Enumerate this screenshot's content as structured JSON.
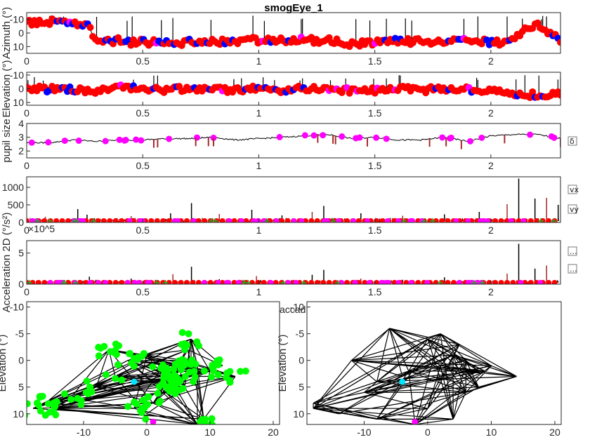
{
  "figure": {
    "title": "smogEye_1",
    "exponent_label": "×10^5",
    "saccade_label_fragment": "accad",
    "side_checkboxes": [
      {
        "name": "delta-checkbox",
        "label": "δ"
      },
      {
        "name": "vx-checkbox",
        "label": "vx"
      },
      {
        "name": "vy-checkbox",
        "label": "vy"
      },
      {
        "name": "option-checkbox-1",
        "label": "..."
      },
      {
        "name": "option-checkbox-2",
        "label": "..."
      }
    ]
  },
  "chart_data": [
    {
      "type": "line",
      "name": "azimuth",
      "ylabel": "Azimuth (°)",
      "xlim": [
        0,
        2.3
      ],
      "ylim": [
        -15,
        15
      ],
      "y_reversed": true,
      "xticks": [
        0,
        0.5,
        1,
        1.5,
        2
      ],
      "yticks": [
        -10,
        0,
        10
      ],
      "x": [
        0,
        0.1,
        0.2,
        0.26,
        0.3,
        0.4,
        0.5,
        0.6,
        0.7,
        0.8,
        0.9,
        1.0,
        1.1,
        1.2,
        1.3,
        1.4,
        1.5,
        1.6,
        1.7,
        1.8,
        1.9,
        2.0,
        2.06,
        2.1,
        2.15,
        2.2,
        2.25,
        2.3
      ],
      "y": [
        -8,
        -8,
        -7,
        -6,
        5,
        6,
        7,
        7,
        7,
        6,
        6,
        5,
        6,
        5,
        6,
        8,
        7,
        6,
        6,
        7,
        6,
        7,
        8,
        3,
        -3,
        -6,
        0,
        5
      ]
    },
    {
      "type": "line",
      "name": "elevation",
      "ylabel": "Elevation (°)",
      "xlim": [
        0,
        2.3
      ],
      "ylim": [
        -12,
        12
      ],
      "y_reversed": true,
      "xticks": [
        0,
        0.5,
        1,
        1.5,
        2
      ],
      "yticks": [
        -10,
        0,
        10
      ],
      "x": [
        0,
        0.1,
        0.2,
        0.3,
        0.4,
        0.5,
        0.6,
        0.7,
        0.8,
        0.9,
        1.0,
        1.1,
        1.2,
        1.3,
        1.4,
        1.5,
        1.6,
        1.7,
        1.8,
        1.9,
        2.0,
        2.1,
        2.2,
        2.3
      ],
      "y": [
        1,
        0,
        1,
        2,
        -1,
        0,
        1,
        0,
        0,
        1,
        0,
        1,
        0,
        0,
        1,
        1,
        0,
        1,
        0,
        1,
        1,
        3,
        5,
        4
      ]
    },
    {
      "type": "line",
      "name": "pupil",
      "ylabel": "pupil size",
      "xlim": [
        0,
        2.3
      ],
      "ylim": [
        1.5,
        4
      ],
      "y_reversed": false,
      "xticks": [
        0,
        0.5,
        1,
        1.5,
        2
      ],
      "yticks": [
        2,
        3,
        4
      ],
      "x": [
        0,
        0.1,
        0.2,
        0.3,
        0.4,
        0.5,
        0.6,
        0.7,
        0.8,
        0.9,
        1.0,
        1.1,
        1.2,
        1.3,
        1.4,
        1.5,
        1.6,
        1.7,
        1.8,
        1.9,
        2.0,
        2.1,
        2.2,
        2.3
      ],
      "y": [
        2.6,
        2.6,
        2.8,
        2.7,
        2.8,
        2.8,
        2.9,
        2.9,
        3.0,
        2.8,
        2.9,
        3.0,
        3.1,
        3.2,
        2.9,
        3.0,
        2.8,
        2.8,
        3.0,
        2.7,
        3.1,
        3.2,
        3.2,
        2.9
      ]
    },
    {
      "type": "line",
      "name": "velocity",
      "xlim": [
        0,
        2.3
      ],
      "ylim": [
        0,
        1300
      ],
      "y_reversed": false,
      "xticks": [
        0,
        0.5,
        1,
        1.5,
        2
      ],
      "yticks": [
        0,
        500,
        1000
      ],
      "x": [
        0.08,
        0.22,
        0.26,
        0.45,
        0.62,
        0.71,
        0.83,
        0.97,
        1.1,
        1.23,
        1.28,
        1.44,
        1.62,
        1.8,
        1.95,
        2.07,
        2.12,
        2.19,
        2.24,
        2.29
      ],
      "y": [
        160,
        380,
        220,
        180,
        260,
        550,
        240,
        360,
        200,
        300,
        470,
        260,
        190,
        230,
        300,
        520,
        1250,
        680,
        700,
        500
      ]
    },
    {
      "type": "line",
      "name": "acceleration",
      "ylabel": "Acceleration 2D (°/s²)",
      "xlim": [
        0,
        2.3
      ],
      "ylim": [
        0,
        700000
      ],
      "y_reversed": false,
      "xticks": [
        0,
        0.5,
        1,
        1.5,
        2
      ],
      "yticks": [
        0,
        5,
        10,
        15,
        20
      ],
      "ytick_scale": 100000,
      "ytick_labels": [
        "0",
        "5",
        "",
        "",
        ""
      ],
      "x": [
        0.1,
        0.27,
        0.45,
        0.63,
        0.71,
        0.83,
        0.99,
        1.23,
        1.28,
        1.44,
        1.62,
        1.8,
        2.07,
        2.12,
        2.19,
        2.24
      ],
      "y": [
        60000,
        120000,
        90000,
        160000,
        280000,
        80000,
        130000,
        150000,
        230000,
        90000,
        70000,
        110000,
        170000,
        650000,
        250000,
        300000
      ]
    },
    {
      "type": "scatter",
      "name": "gaze-scatter-saccades",
      "ylabel": "Elevation (°)",
      "xlim": [
        -19,
        21
      ],
      "ylim": [
        -11,
        12
      ],
      "y_reversed": true,
      "xticks": [
        -10,
        0,
        10,
        20
      ],
      "yticks": [
        -10,
        -5,
        0,
        5,
        10
      ],
      "x": [
        -18,
        -16,
        -12,
        -8,
        -5,
        -3,
        0,
        2,
        4,
        5,
        6,
        6.5,
        7,
        8,
        10,
        14,
        3,
        1,
        -2,
        9,
        5,
        7,
        6,
        4,
        12,
        -15,
        -6,
        0,
        8,
        6
      ],
      "y": [
        9,
        8,
        7,
        5,
        3,
        0,
        -1,
        2,
        3,
        1,
        0,
        -2,
        -4,
        1,
        2,
        3,
        6,
        8,
        9,
        11,
        3,
        2,
        5,
        4,
        1,
        9,
        -2,
        10,
        12,
        4
      ]
    },
    {
      "type": "line",
      "name": "gaze-trace",
      "ylabel": "Elevation (°)",
      "xlim": [
        -19,
        21
      ],
      "ylim": [
        -11,
        12
      ],
      "y_reversed": true,
      "xticks": [
        -10,
        0,
        10,
        20
      ],
      "yticks": [
        -10,
        -5,
        0,
        5,
        10
      ],
      "x": [
        -18,
        -10,
        -4,
        2,
        6,
        10,
        14,
        8,
        4,
        0,
        -6,
        -12,
        -18,
        -14,
        -8,
        0,
        6,
        9,
        5,
        2,
        -3,
        -8,
        -2,
        4,
        8
      ],
      "y": [
        9,
        6,
        3,
        1,
        0,
        1,
        3,
        2,
        -1,
        -4,
        -6,
        0,
        8,
        10,
        11,
        9,
        6,
        2,
        -3,
        -5,
        2,
        4,
        12,
        11,
        5
      ]
    }
  ]
}
